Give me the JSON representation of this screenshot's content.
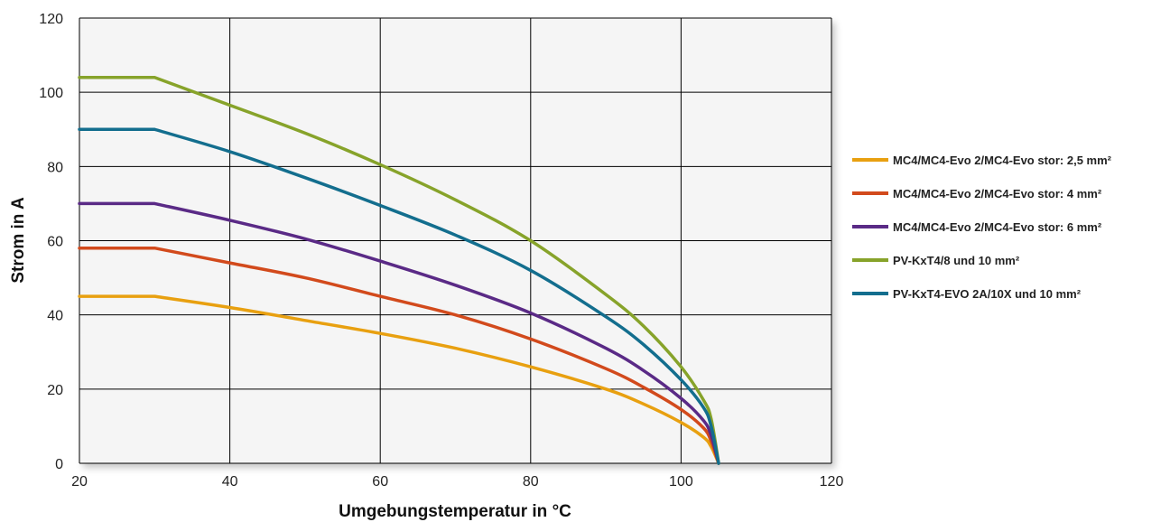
{
  "chart_data": {
    "type": "line",
    "xlabel": "Umgebungstemperatur in °C",
    "ylabel": "Strom in A",
    "xlim": [
      20,
      120
    ],
    "ylim": [
      0,
      120
    ],
    "xticks": [
      20,
      40,
      60,
      80,
      100,
      120
    ],
    "yticks": [
      0,
      20,
      40,
      60,
      80,
      100,
      120
    ],
    "grid": true,
    "legend_position": "right",
    "series": [
      {
        "name": "MC4/MC4-Evo 2/MC4-Evo stor: 2,5 mm²",
        "color": "#e8a010",
        "x": [
          20,
          30,
          40,
          50,
          60,
          70,
          80,
          90,
          95,
          100,
          103,
          104,
          105
        ],
        "y": [
          45,
          45,
          42,
          38.5,
          35,
          31,
          26,
          20,
          16,
          11,
          7,
          4.5,
          0
        ]
      },
      {
        "name": "MC4/MC4-Evo 2/MC4-Evo stor: 4 mm²",
        "color": "#d24a1c",
        "x": [
          20,
          30,
          40,
          50,
          60,
          70,
          80,
          90,
          95,
          100,
          103,
          104,
          105
        ],
        "y": [
          58,
          58,
          54,
          50,
          45,
          40,
          33.5,
          25.5,
          20.5,
          14.5,
          9.5,
          6,
          0
        ]
      },
      {
        "name": "MC4/MC4-Evo 2/MC4-Evo stor: 6 mm²",
        "color": "#5a2a86",
        "x": [
          20,
          30,
          40,
          50,
          60,
          70,
          80,
          90,
          95,
          100,
          103,
          104,
          105
        ],
        "y": [
          70,
          70,
          65.5,
          60.5,
          54.5,
          48,
          40.5,
          31,
          25,
          17.5,
          11.5,
          7.5,
          0
        ]
      },
      {
        "name": "PV-KxT4/8 und 10 mm²",
        "color": "#87a32a",
        "x": [
          20,
          30,
          40,
          50,
          60,
          70,
          80,
          90,
          95,
          100,
          103,
          104,
          105
        ],
        "y": [
          104,
          104,
          96.5,
          89,
          80.5,
          71,
          60,
          45.5,
          37,
          26,
          17,
          12,
          0
        ]
      },
      {
        "name": "PV-KxT4-EVO 2A/10X und 10 mm²",
        "color": "#136e8e",
        "x": [
          20,
          30,
          40,
          50,
          60,
          70,
          80,
          90,
          95,
          100,
          103,
          104,
          105
        ],
        "y": [
          90,
          90,
          84,
          77,
          69.5,
          61.5,
          52,
          39.5,
          32,
          22.5,
          15,
          10,
          0
        ]
      }
    ]
  }
}
